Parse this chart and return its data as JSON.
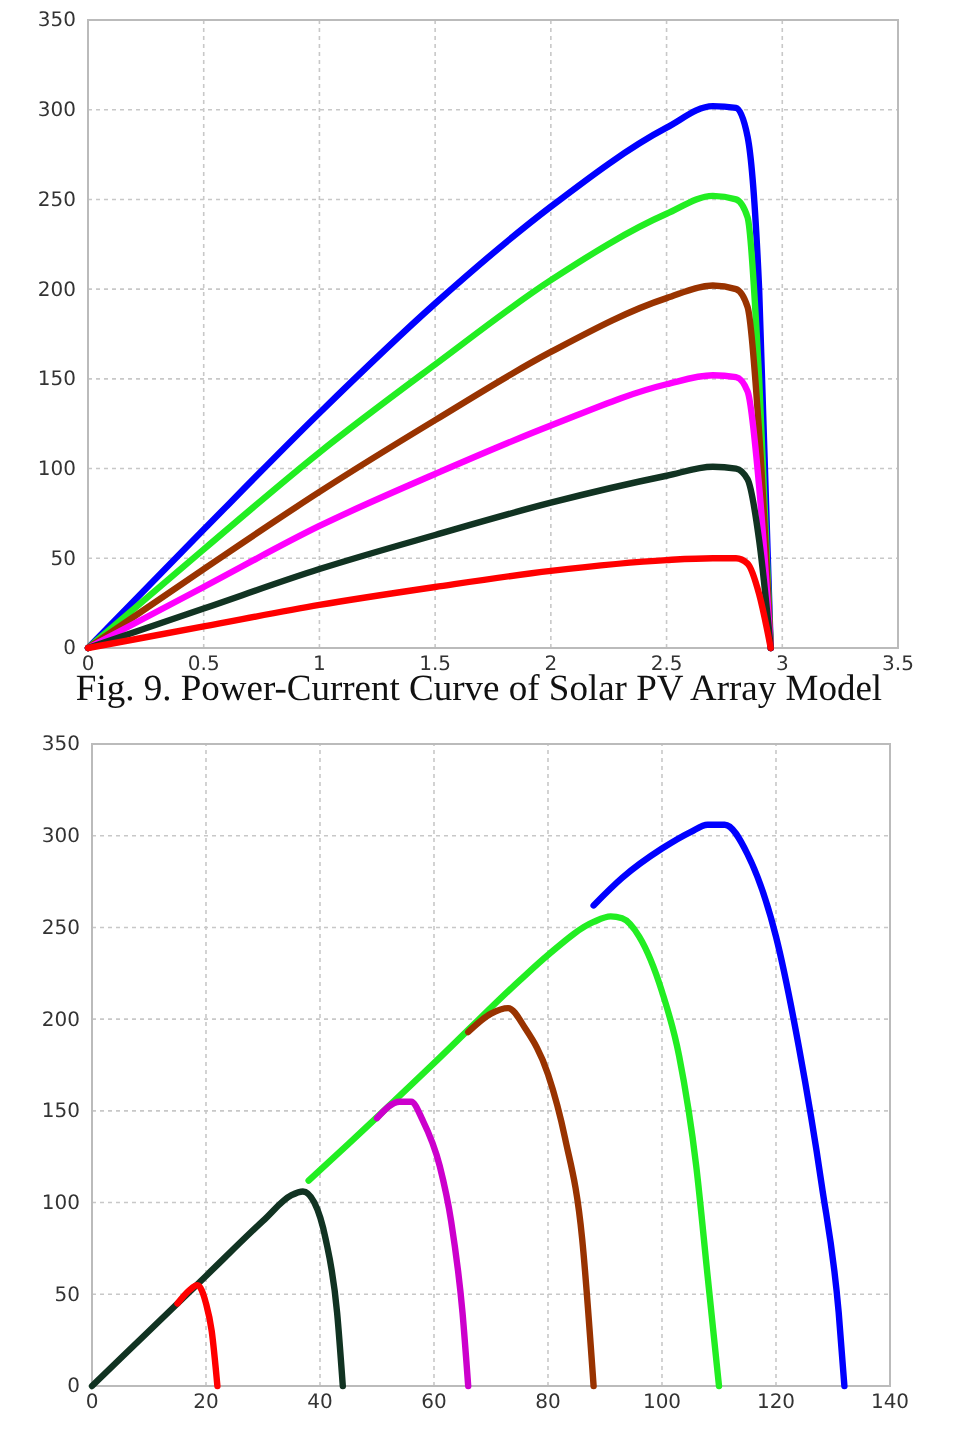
{
  "chart_data": [
    {
      "type": "line",
      "annotations": [
        "Fig.  9. Power-Current Curve of Solar PV Array Model"
      ],
      "xlim": [
        0,
        3.5
      ],
      "ylim": [
        0,
        350
      ],
      "xticks": [
        0,
        0.5,
        1,
        1.5,
        2,
        2.5,
        3,
        3.5
      ],
      "yticks": [
        0,
        50,
        100,
        150,
        200,
        250,
        300,
        350
      ],
      "grid": true,
      "line_style": "solid",
      "x": [
        0,
        0.5,
        1,
        1.5,
        2,
        2.5,
        2.7,
        2.8,
        2.85,
        2.9,
        2.95
      ],
      "series": [
        {
          "color": "#0000ff",
          "values": [
            0,
            66,
            131,
            192,
            246,
            290,
            302,
            301,
            285,
            200,
            0
          ]
        },
        {
          "color": "#22ee22",
          "values": [
            0,
            55,
            109,
            158,
            205,
            242,
            252,
            250,
            240,
            150,
            0
          ]
        },
        {
          "color": "#993300",
          "values": [
            0,
            44,
            87,
            127,
            165,
            195,
            202,
            200,
            190,
            120,
            0
          ]
        },
        {
          "color": "#ff00ff",
          "values": [
            0,
            34,
            68,
            97,
            124,
            147,
            152,
            151,
            143,
            90,
            0
          ]
        },
        {
          "color": "#113322",
          "values": [
            0,
            22,
            44,
            63,
            81,
            96,
            101,
            100,
            94,
            60,
            0
          ]
        },
        {
          "color": "#ff0000",
          "values": [
            0,
            12,
            24,
            34,
            43,
            49,
            50,
            50,
            47,
            30,
            0
          ]
        }
      ]
    },
    {
      "type": "line",
      "xlim": [
        0,
        140
      ],
      "ylim": [
        0,
        350
      ],
      "xticks": [
        0,
        20,
        40,
        60,
        80,
        100,
        120,
        140
      ],
      "yticks": [
        0,
        50,
        100,
        150,
        200,
        250,
        300,
        350
      ],
      "grid": true,
      "line_style": "solid",
      "series": [
        {
          "color": "#0000ff",
          "x": [
            88,
            93,
            100,
            105,
            108,
            111,
            115,
            120,
            124,
            128,
            131,
            132
          ],
          "values": [
            262,
            277,
            293,
            302,
            306,
            306,
            290,
            245,
            185,
            110,
            40,
            0
          ]
        },
        {
          "color": "#22ee22",
          "x": [
            38,
            45,
            60,
            75,
            80,
            88,
            91,
            93,
            96,
            100,
            103,
            106,
            108,
            110
          ],
          "values": [
            112,
            132,
            176,
            221,
            235,
            253,
            256,
            255,
            245,
            215,
            180,
            120,
            60,
            0
          ]
        },
        {
          "color": "#993300",
          "x": [
            66,
            70,
            73,
            76,
            80,
            83,
            86,
            88
          ],
          "values": [
            193,
            203,
            206,
            195,
            170,
            135,
            80,
            0
          ]
        },
        {
          "color": "#cc00cc",
          "x": [
            50,
            54,
            56,
            58,
            61,
            63,
            65,
            66
          ],
          "values": [
            146,
            155,
            155,
            145,
            120,
            90,
            40,
            0
          ]
        },
        {
          "color": "#113322",
          "x": [
            0,
            10,
            20,
            30,
            35,
            37,
            39,
            41,
            43,
            44
          ],
          "values": [
            0,
            30,
            60,
            90,
            104,
            106,
            100,
            80,
            40,
            0
          ]
        },
        {
          "color": "#ff0000",
          "x": [
            15,
            17,
            18.5,
            20,
            21,
            22
          ],
          "values": [
            45,
            52,
            55,
            45,
            30,
            0
          ]
        }
      ]
    }
  ]
}
